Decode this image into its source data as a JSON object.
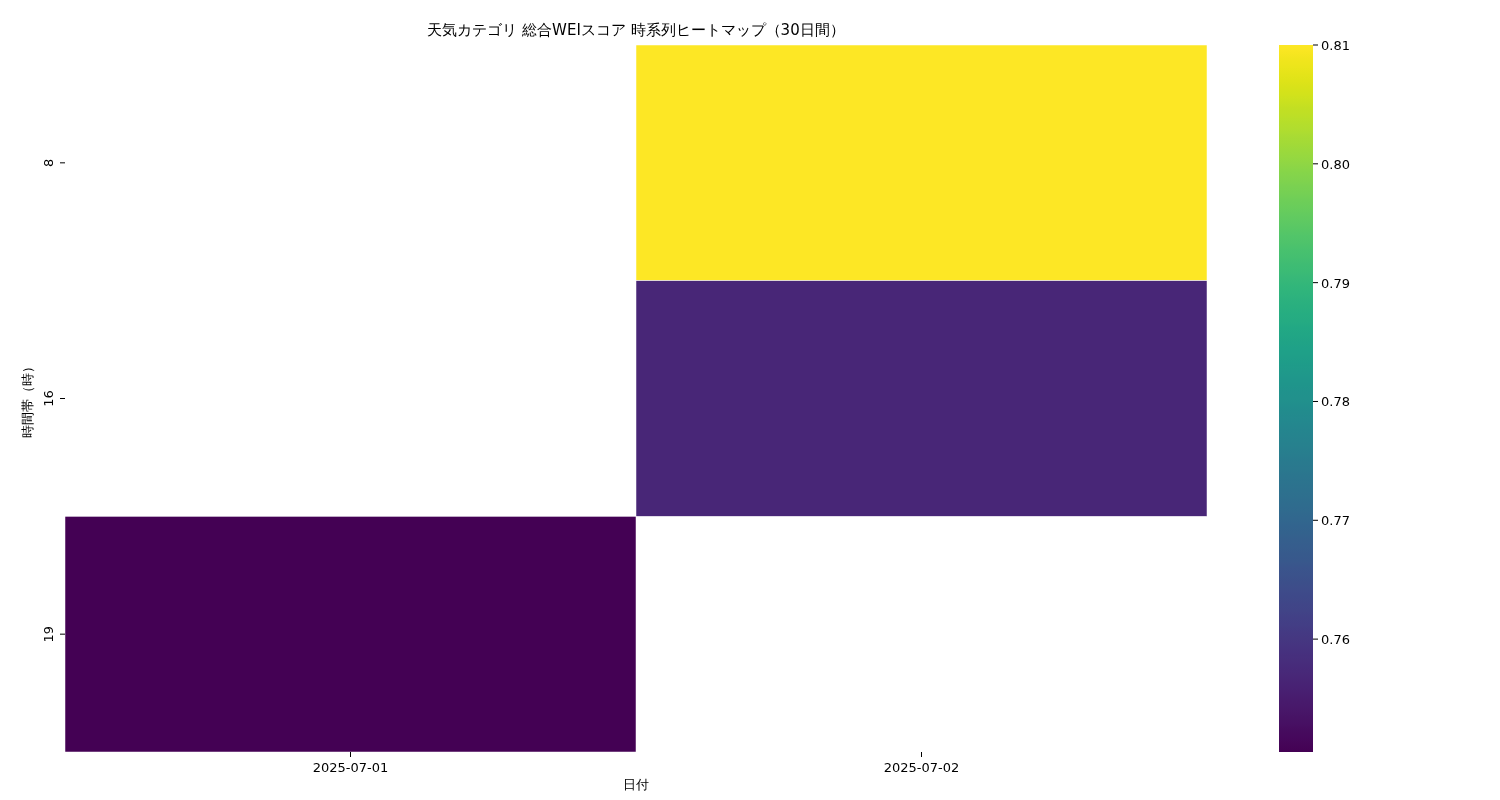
{
  "chart_data": {
    "type": "heatmap",
    "title": "天気カテゴリ 総合WEIスコア 時系列ヒートマップ（30日間）",
    "xlabel": "日付",
    "ylabel": "時間帯（時）",
    "categories": [
      "2025-07-01",
      "2025-07-02"
    ],
    "y_categories": [
      "8",
      "16",
      "19"
    ],
    "cells": [
      [
        null,
        0.81
      ],
      [
        null,
        0.757
      ],
      [
        0.7505,
        null
      ]
    ],
    "clim": [
      0.7505,
      0.81
    ],
    "cticks": [
      0.76,
      0.77,
      0.78,
      0.79,
      {
        "value": 0.8,
        "label": "0.80"
      },
      0.81
    ]
  }
}
